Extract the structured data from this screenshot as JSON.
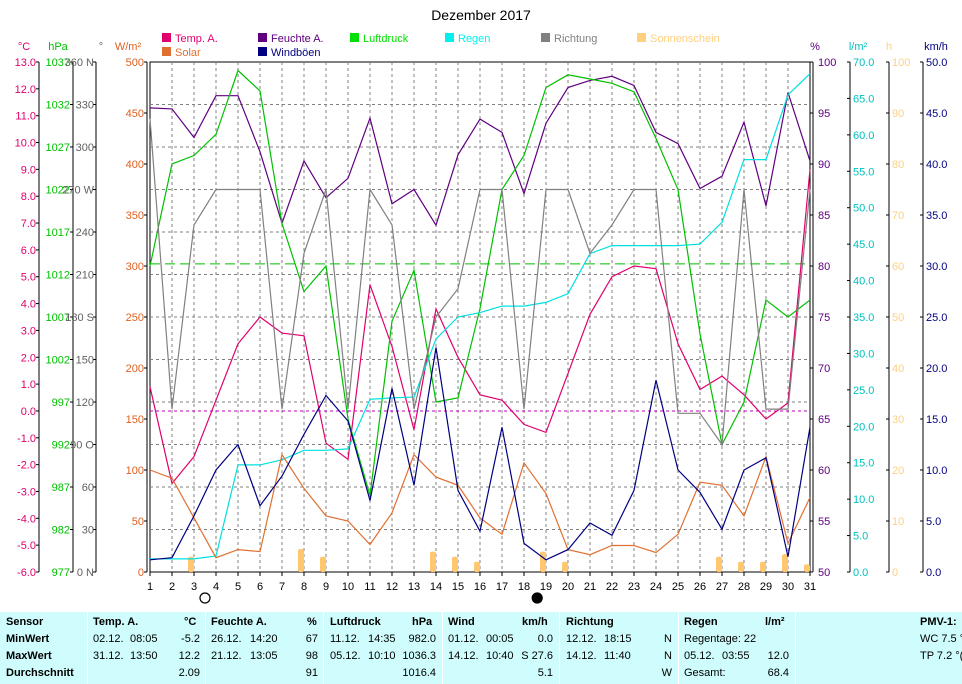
{
  "chart_data": {
    "type": "line",
    "title": "Dezember 2017",
    "days": [
      1,
      2,
      3,
      4,
      5,
      6,
      7,
      8,
      9,
      10,
      11,
      12,
      13,
      14,
      15,
      16,
      17,
      18,
      19,
      20,
      21,
      22,
      23,
      24,
      25,
      26,
      27,
      28,
      29,
      30,
      31
    ],
    "axes": {
      "temp": {
        "unit": "°C",
        "min": -6,
        "max": 13,
        "ticks": [
          "13.0",
          "12.0",
          "11.0",
          "10.0",
          "9.0",
          "8.0",
          "7.0",
          "6.0",
          "5.0",
          "4.0",
          "3.0",
          "2.0",
          "1.0",
          "0.0",
          "-1.0",
          "-2.0",
          "-3.0",
          "-4.0",
          "-5.0",
          "-6.0"
        ],
        "color": "#e0006e"
      },
      "pressure": {
        "unit": "hPa",
        "min": 977,
        "max": 1037,
        "ticks": [
          "1037",
          "1032",
          "1027",
          "1022",
          "1017",
          "1012",
          "1007",
          "1002",
          "997",
          "992",
          "987",
          "982",
          "977"
        ],
        "color": "#00c000"
      },
      "direction": {
        "unit": "°",
        "min": 0,
        "max": 360,
        "ticks": [
          "360 N",
          "330",
          "300",
          "270 W",
          "240",
          "210",
          "180 S",
          "150",
          "120",
          "90 O",
          "60",
          "30",
          "0 N"
        ],
        "color": "#606060"
      },
      "solar": {
        "unit": "W/m²",
        "min": 0,
        "max": 500,
        "ticks": [
          "500",
          "450",
          "400",
          "350",
          "300",
          "250",
          "200",
          "150",
          "100",
          "50",
          "0"
        ],
        "color": "#e06020"
      },
      "humidity": {
        "unit": "%",
        "min": 50,
        "max": 100,
        "ticks": [
          "100",
          "95",
          "90",
          "85",
          "80",
          "75",
          "70",
          "65",
          "60",
          "55",
          "50"
        ],
        "color": "#600080"
      },
      "rain": {
        "unit": "l/m²",
        "min": 0,
        "max": 70,
        "ticks": [
          "70.0",
          "65.0",
          "60.0",
          "55.0",
          "50.0",
          "45.0",
          "40.0",
          "35.0",
          "30.0",
          "25.0",
          "20.0",
          "15.0",
          "10.0",
          "5.0",
          "0.0"
        ],
        "color": "#00c0c0"
      },
      "sun": {
        "unit": "h",
        "min": 0,
        "max": 100,
        "ticks": [
          "100",
          "90",
          "80",
          "70",
          "60",
          "50",
          "40",
          "30",
          "20",
          "10",
          "0"
        ],
        "color": "#ffd080"
      },
      "wind": {
        "unit": "km/h",
        "min": 0,
        "max": 50,
        "ticks": [
          "50.0",
          "45.0",
          "40.0",
          "35.0",
          "30.0",
          "25.0",
          "20.0",
          "15.0",
          "10.0",
          "5.0",
          "0.0"
        ],
        "color": "#000080"
      }
    },
    "series": [
      {
        "name": "Temp. A.",
        "axis": "temp",
        "color": "#e0006e",
        "values": [
          0.9,
          -2.7,
          -1.7,
          0.4,
          2.5,
          3.5,
          2.9,
          2.8,
          -1.2,
          -1.8,
          4.7,
          2.4,
          -0.7,
          3.8,
          2.0,
          0.6,
          0.4,
          -0.5,
          -0.8,
          1.4,
          3.6,
          5.0,
          5.4,
          5.3,
          2.5,
          0.8,
          1.3,
          0.6,
          -0.3,
          0.3,
          9.0
        ]
      },
      {
        "name": "Feuchte A.",
        "axis": "humidity",
        "color": "#600080",
        "values": [
          95.5,
          95.4,
          92.6,
          96.7,
          96.7,
          91.2,
          84.2,
          90.3,
          86.7,
          88.6,
          94.5,
          86.1,
          87.5,
          84.0,
          90.9,
          94.4,
          93.1,
          87.1,
          94.0,
          97.5,
          98.2,
          98.6,
          97.7,
          93.1,
          92.0,
          87.6,
          88.8,
          94.1,
          85.9,
          97.0,
          90.3
        ]
      },
      {
        "name": "Luftdruck",
        "axis": "pressure",
        "color": "#00c000",
        "values": [
          1013.0,
          1025.0,
          1026.0,
          1028.5,
          1036.0,
          1033.6,
          1018.0,
          1010.0,
          1013.0,
          995.0,
          986.0,
          1006.5,
          1012.5,
          997.0,
          997.5,
          1008.0,
          1022.0,
          1026.0,
          1034.0,
          1035.5,
          1035.0,
          1034.5,
          1033.5,
          1028.0,
          1022.0,
          1005.0,
          992.0,
          997.0,
          1009.0,
          1007.0,
          1009.0
        ]
      },
      {
        "name": "Regen",
        "axis": "rain",
        "color": "#00e0e0",
        "values": [
          1.8,
          1.8,
          1.8,
          2.2,
          14.7,
          14.7,
          15.4,
          16.7,
          16.7,
          16.9,
          23.7,
          23.9,
          24.0,
          32.0,
          35.0,
          35.6,
          36.5,
          36.5,
          37.0,
          38.2,
          43.7,
          44.8,
          44.8,
          44.8,
          44.8,
          45.0,
          48.0,
          56.6,
          56.6,
          65.5,
          68.4
        ]
      },
      {
        "name": "Richtung",
        "axis": "direction",
        "color": "#808080",
        "values": [
          320,
          115,
          245,
          270,
          270,
          270,
          115,
          225,
          270,
          115,
          270,
          245,
          115,
          180,
          200,
          270,
          270,
          115,
          270,
          270,
          225,
          245,
          270,
          270,
          112,
          112,
          90,
          270,
          115,
          115,
          270
        ]
      },
      {
        "name": "Solar",
        "axis": "solar",
        "color": "#e07030",
        "values": [
          100,
          92,
          53,
          14,
          22,
          20,
          115,
          82,
          55,
          50,
          27,
          58,
          115,
          93,
          85,
          53,
          37,
          107,
          77,
          22,
          17,
          26,
          26,
          19,
          37,
          88,
          85,
          55,
          113,
          28,
          73
        ]
      },
      {
        "name": "Windböen",
        "axis": "wind",
        "color": "#000080",
        "values": [
          1.2,
          1.4,
          5.5,
          10.0,
          12.5,
          6.5,
          9.4,
          13.5,
          17.3,
          14.8,
          7.0,
          18.0,
          8.5,
          22.0,
          8.0,
          4.0,
          14.2,
          2.8,
          1.2,
          2.2,
          4.8,
          3.6,
          8.0,
          18.8,
          10.0,
          7.8,
          4.2,
          10.0,
          11.2,
          1.5,
          14.2
        ]
      },
      {
        "name": "Sonnenschein",
        "axis": "sun",
        "color": "#ffc870",
        "bars": [
          0,
          3,
          0,
          0,
          0,
          0,
          4.5,
          3,
          0,
          0,
          0,
          0,
          4,
          3,
          2,
          0,
          0,
          4,
          2,
          0,
          0,
          0,
          0,
          0,
          0,
          3,
          2,
          2,
          3.5,
          1.5,
          0
        ]
      }
    ],
    "reference_lines": [
      {
        "series": "Luftdruck",
        "value": 1013.25,
        "style": "dashed",
        "color": "#00c000"
      },
      {
        "series": "Temp. A.",
        "value": 0.0,
        "style": "dashed",
        "color": "#c000c0"
      }
    ],
    "moon_phases": [
      {
        "day": 3.5,
        "phase": "full"
      },
      {
        "day": 18.6,
        "phase": "new"
      }
    ]
  },
  "legend": [
    {
      "label": "Temp. A.",
      "color": "#e0006e"
    },
    {
      "label": "Feuchte A.",
      "color": "#600080"
    },
    {
      "label": "Luftdruck",
      "color": "#00e000"
    },
    {
      "label": "Regen",
      "color": "#00f0f0"
    },
    {
      "label": "Richtung",
      "color": "#808080"
    },
    {
      "label": "Sonnenschein",
      "color": "#ffd080"
    },
    {
      "label": "Solar",
      "color": "#e07030"
    },
    {
      "label": "Windböen",
      "color": "#000080"
    }
  ],
  "summary": {
    "row_labels": {
      "sensor": "Sensor",
      "min": "MinWert",
      "max": "MaxWert",
      "avg": "Durchschnitt"
    },
    "temp": {
      "title": "Temp. A.",
      "unit": "°C",
      "min_date": "02.12.",
      "min_time": "08:05",
      "min_val": "-5.2",
      "max_date": "31.12.",
      "max_time": "13:50",
      "max_val": "12.2",
      "avg": "2.09"
    },
    "hum": {
      "title": "Feuchte A.",
      "unit": "%",
      "min_date": "26.12.",
      "min_time": "14:20",
      "min_val": "67",
      "max_date": "21.12.",
      "max_time": "13:05",
      "max_val": "98",
      "avg": "91"
    },
    "press": {
      "title": "Luftdruck",
      "unit": "hPa",
      "min_date": "11.12.",
      "min_time": "14:35",
      "min_val": "982.0",
      "max_date": "05.12.",
      "max_time": "10:10",
      "max_val": "1036.3",
      "avg": "1016.4"
    },
    "wind": {
      "title": "Wind",
      "unit": "km/h",
      "min_date": "01.12.",
      "min_time": "00:05",
      "min_val": "0.0",
      "max_date": "14.12.",
      "max_time": "10:40",
      "max_val": "S 27.6",
      "avg": "5.1"
    },
    "dir": {
      "title": "Richtung",
      "min_date": "12.12.",
      "min_time": "18:15",
      "min_val": "N",
      "max_date": "14.12.",
      "max_time": "11:40",
      "max_val": "N",
      "avg": "W"
    },
    "rain": {
      "title": "Regen",
      "unit": "l/m²",
      "days_label": "Regentage: 22",
      "max_date": "05.12.",
      "max_time": "03:55",
      "max_val": "12.0",
      "total_label": "Gesamt:",
      "total_val": "68.4"
    },
    "pmv": {
      "title": "PMV-1:",
      "wc": "WC 7.5 °",
      "tp": "TP 7.2 °("
    }
  }
}
